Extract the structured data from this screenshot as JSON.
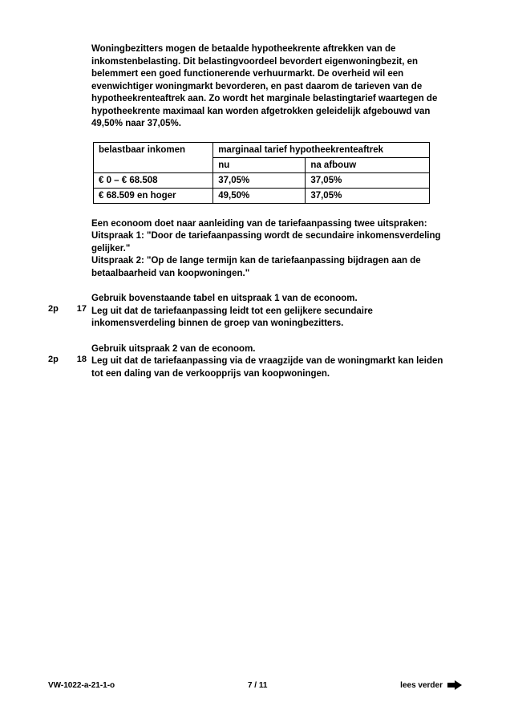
{
  "intro": "Woningbezitters mogen de betaalde hypotheekrente aftrekken van de inkomstenbelasting. Dit belastingvoordeel bevordert eigenwoningbezit, en belemmert een goed functionerende verhuurmarkt. De overheid wil een evenwichtiger woningmarkt bevorderen, en past daarom de tarieven van de hypotheekrenteaftrek aan. Zo wordt het marginale belastingtarief waartegen de hypotheekrente maximaal kan worden afgetrokken geleidelijk afgebouwd van 49,50% naar 37,05%.",
  "table": {
    "head_left": "belastbaar inkomen",
    "head_right": "marginaal tarief hypotheekrenteaftrek",
    "sub_nu": "nu",
    "sub_na": "na afbouw",
    "row1_income": "€ 0 – € 68.508",
    "row1_nu": "37,05%",
    "row1_na": "37,05%",
    "row2_income": "€ 68.509 en hoger",
    "row2_nu": "49,50%",
    "row2_na": "37,05%"
  },
  "statements": {
    "lead": "Een econoom doet naar aanleiding van de tariefaanpassing twee uitspraken:",
    "u1": "Uitspraak 1: \"Door de tariefaanpassing wordt de secundaire inkomensverdeling gelijker.\"",
    "u2": "Uitspraak 2: \"Op de lange termijn kan de tariefaanpassing bijdragen aan de betaalbaarheid van koopwoningen.\""
  },
  "q17": {
    "points": "2p",
    "num": "17",
    "lead": "Gebruik bovenstaande tabel en uitspraak 1 van de econoom.",
    "body": "Leg uit dat de tariefaanpassing leidt tot een gelijkere secundaire inkomensverdeling binnen de groep van woningbezitters."
  },
  "q18": {
    "points": "2p",
    "num": "18",
    "lead": "Gebruik uitspraak 2 van de econoom.",
    "body": "Leg uit dat de tariefaanpassing via de vraagzijde van de woningmarkt kan leiden tot een daling van de verkoopprijs van koopwoningen."
  },
  "footer": {
    "left": "VW-1022-a-21-1-o",
    "center": "7 / 11",
    "right": "lees verder"
  }
}
